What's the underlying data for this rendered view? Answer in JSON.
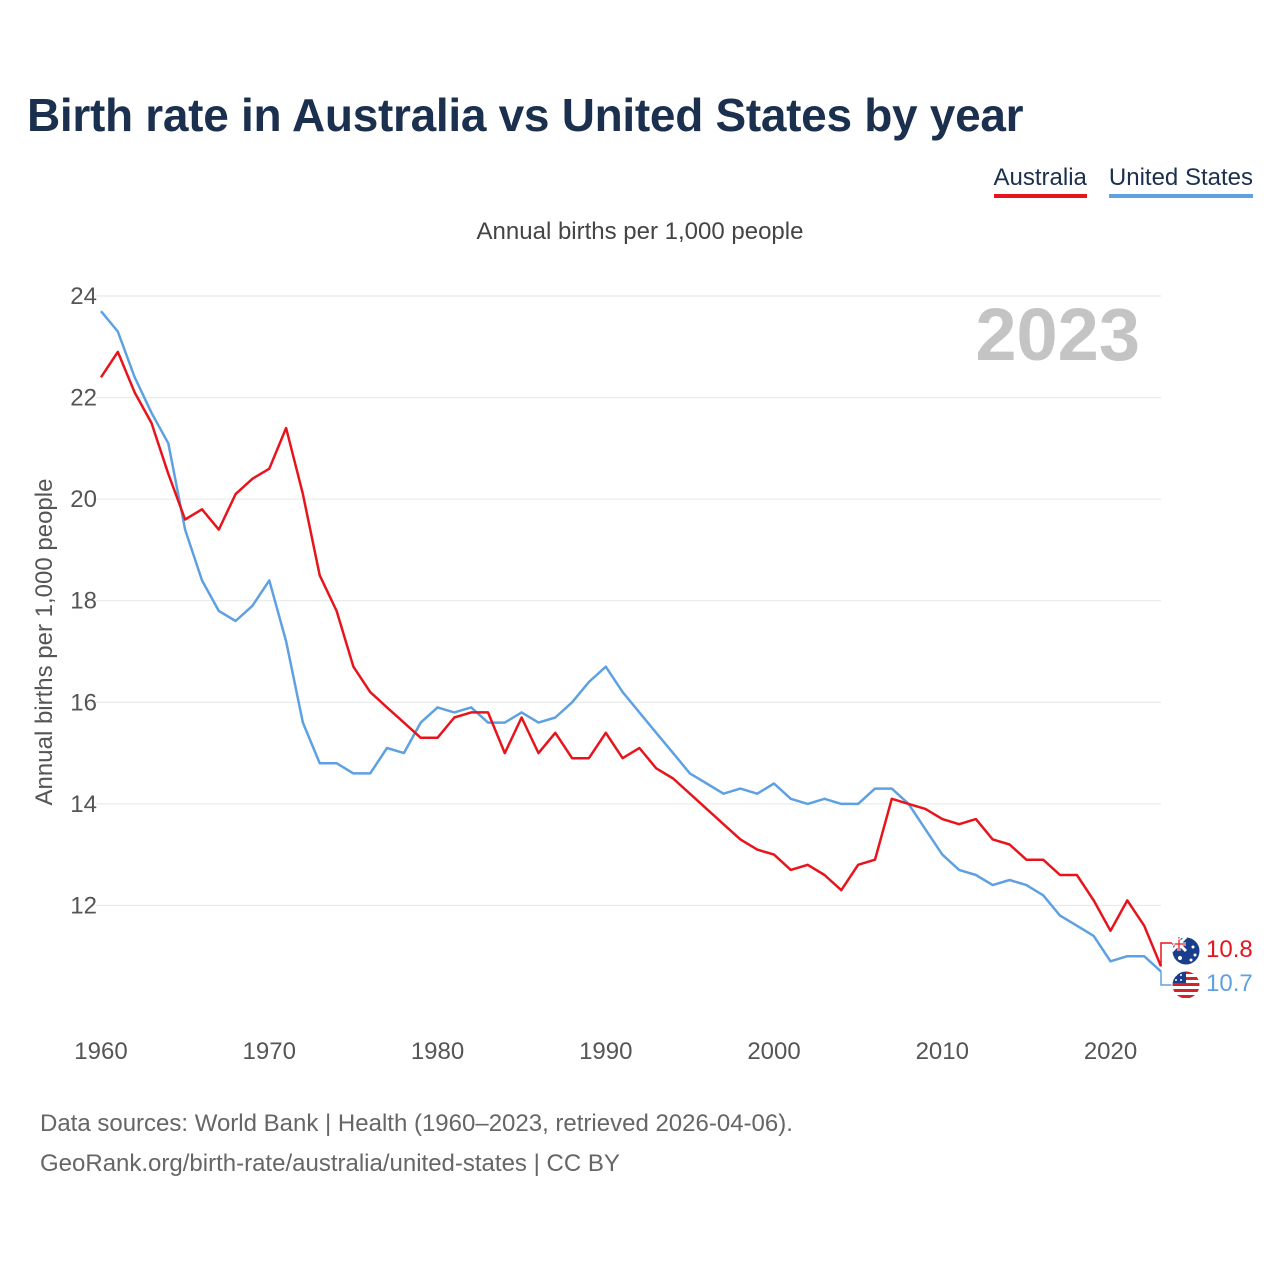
{
  "title": "Birth rate in Australia vs United States by year",
  "subtitle": "Annual births per 1,000 people",
  "legend": [
    {
      "label": "Australia",
      "color": "#e8141c"
    },
    {
      "label": "United States",
      "color": "#5ea1e2"
    }
  ],
  "year_watermark": "2023",
  "end_labels": {
    "australia": "10.8",
    "united_states": "10.7"
  },
  "footer": {
    "line1": "Data sources: World Bank | Health (1960–2023, retrieved 2026-04-06).",
    "line2": "GeoRank.org/birth-rate/australia/united-states | CC BY"
  },
  "colors": {
    "australia": "#e8141c",
    "united_states": "#5ea1e2",
    "title": "#1b2f4e",
    "grid": "#e6e6e6",
    "watermark": "#c4c4c4"
  },
  "chart_data": {
    "type": "line",
    "title": "Birth rate in Australia vs United States by year",
    "ylabel": "Annual births per 1,000 people",
    "xlabel": "",
    "xlim": [
      1960,
      2023
    ],
    "ylim": [
      10,
      24
    ],
    "yticks": [
      12,
      14,
      16,
      18,
      20,
      22,
      24
    ],
    "xticks": [
      1960,
      1970,
      1980,
      1990,
      2000,
      2010,
      2020
    ],
    "x": [
      1960,
      1961,
      1962,
      1963,
      1964,
      1965,
      1966,
      1967,
      1968,
      1969,
      1970,
      1971,
      1972,
      1973,
      1974,
      1975,
      1976,
      1977,
      1978,
      1979,
      1980,
      1981,
      1982,
      1983,
      1984,
      1985,
      1986,
      1987,
      1988,
      1989,
      1990,
      1991,
      1992,
      1993,
      1994,
      1995,
      1996,
      1997,
      1998,
      1999,
      2000,
      2001,
      2002,
      2003,
      2004,
      2005,
      2006,
      2007,
      2008,
      2009,
      2010,
      2011,
      2012,
      2013,
      2014,
      2015,
      2016,
      2017,
      2018,
      2019,
      2020,
      2021,
      2022,
      2023
    ],
    "series": [
      {
        "name": "Australia",
        "values": [
          22.4,
          22.9,
          22.1,
          21.5,
          20.5,
          19.6,
          19.8,
          19.4,
          20.1,
          20.4,
          20.6,
          21.4,
          20.1,
          18.5,
          17.8,
          16.7,
          16.2,
          15.9,
          15.6,
          15.3,
          15.3,
          15.7,
          15.8,
          15.8,
          15.0,
          15.7,
          15.0,
          15.4,
          14.9,
          14.9,
          15.4,
          14.9,
          15.1,
          14.7,
          14.5,
          14.2,
          13.9,
          13.6,
          13.3,
          13.1,
          13.0,
          12.7,
          12.8,
          12.6,
          12.3,
          12.8,
          12.9,
          14.1,
          14.0,
          13.9,
          13.7,
          13.6,
          13.7,
          13.3,
          13.2,
          12.9,
          12.9,
          12.6,
          12.6,
          12.1,
          11.5,
          12.1,
          11.6,
          10.8
        ]
      },
      {
        "name": "United States",
        "values": [
          23.7,
          23.3,
          22.4,
          21.7,
          21.1,
          19.4,
          18.4,
          17.8,
          17.6,
          17.9,
          18.4,
          17.2,
          15.6,
          14.8,
          14.8,
          14.6,
          14.6,
          15.1,
          15.0,
          15.6,
          15.9,
          15.8,
          15.9,
          15.6,
          15.6,
          15.8,
          15.6,
          15.7,
          16.0,
          16.4,
          16.7,
          16.2,
          15.8,
          15.4,
          15.0,
          14.6,
          14.4,
          14.2,
          14.3,
          14.2,
          14.4,
          14.1,
          14.0,
          14.1,
          14.0,
          14.0,
          14.3,
          14.3,
          14.0,
          13.5,
          13.0,
          12.7,
          12.6,
          12.4,
          12.5,
          12.4,
          12.2,
          11.8,
          11.6,
          11.4,
          10.9,
          11.0,
          11.0,
          10.7
        ]
      }
    ]
  }
}
